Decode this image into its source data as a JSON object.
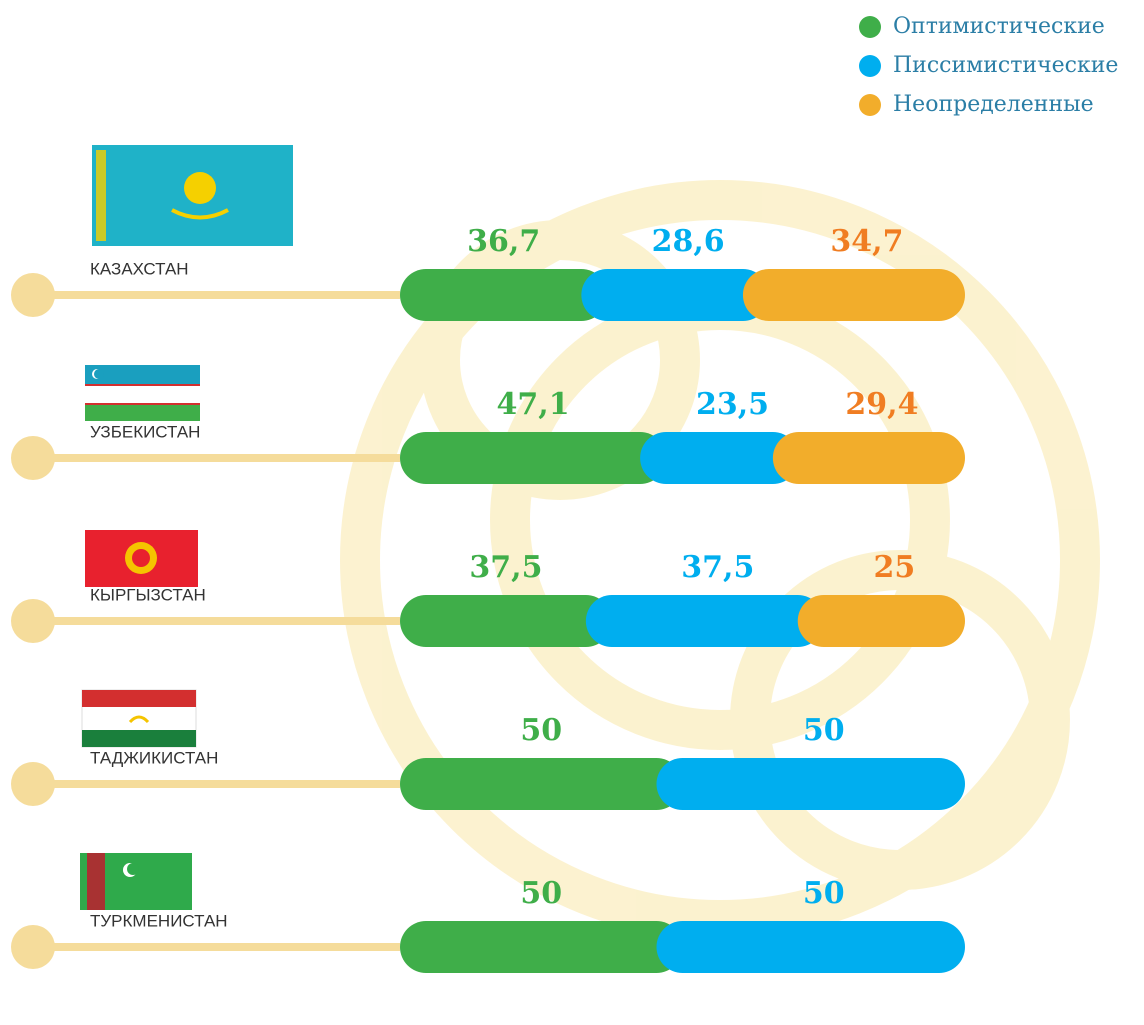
{
  "chart_data": {
    "type": "bar",
    "stacked": true,
    "orientation": "horizontal",
    "xlim": [
      0,
      100
    ],
    "legend": "top-right",
    "categories": [
      "КАЗАХСТАН",
      "УЗБЕКИСТАН",
      "КЫРГЫЗСТАН",
      "ТАДЖИКИСТАН",
      "ТУРКМЕНИСТАН"
    ],
    "series": [
      {
        "name": "Оптимистические",
        "color": "#3fae49",
        "label_color": "#3fae49",
        "values": [
          36.7,
          47.1,
          37.5,
          50,
          50
        ],
        "value_labels": [
          "36,7",
          "47,1",
          "37,5",
          "50",
          "50"
        ]
      },
      {
        "name": "Писсимистические",
        "color": "#00aeef",
        "label_color": "#00aeef",
        "values": [
          28.6,
          23.5,
          37.5,
          50,
          50
        ],
        "value_labels": [
          "28,6",
          "23,5",
          "37,5",
          "50",
          "50"
        ]
      },
      {
        "name": "Неопределенные",
        "color": "#f2ad2b",
        "label_color": "#f07d22",
        "values": [
          34.7,
          29.4,
          25,
          null,
          null
        ],
        "value_labels": [
          "34,7",
          "29,4",
          "25",
          null,
          null
        ]
      }
    ]
  }
}
